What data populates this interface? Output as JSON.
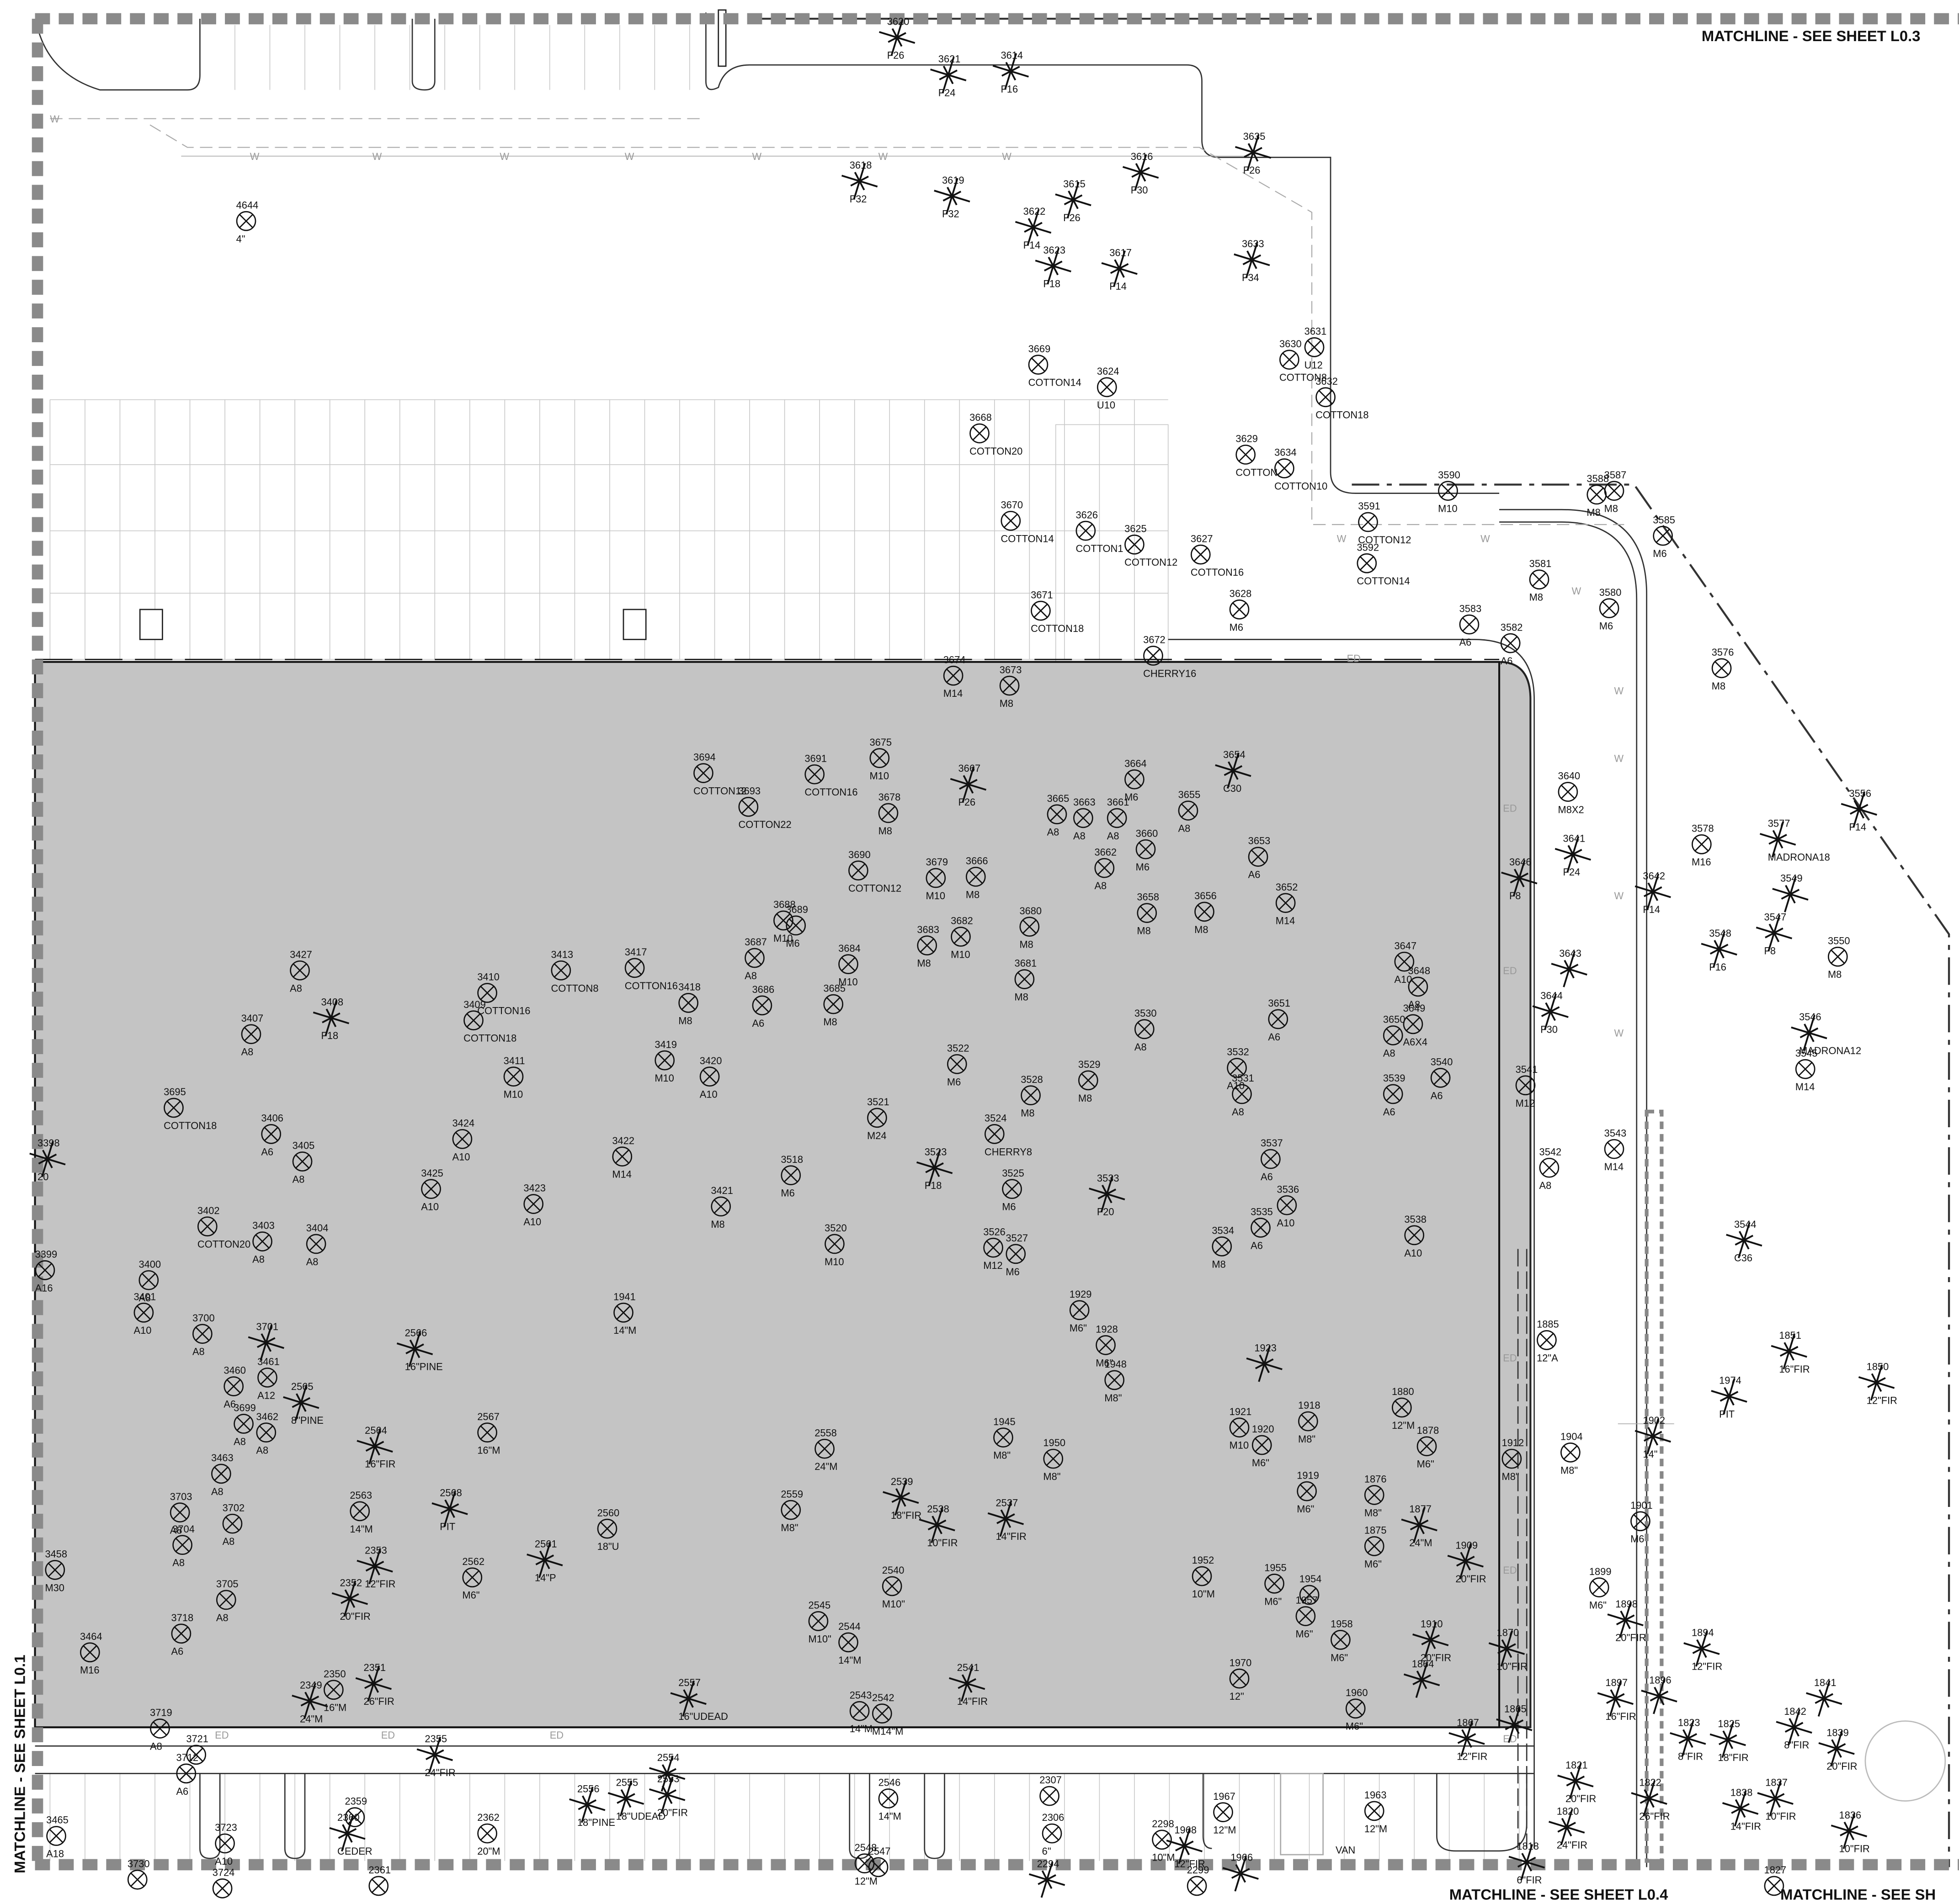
{
  "matchlines": {
    "top": "MATCHLINE - SEE SHEET L0.3",
    "left": "MATCHLINE - SEE SHEET L0.1",
    "bottom": "MATCHLINE - SEE SHEET L0.4",
    "bottom_right": "MATCHLINE - SEE SH"
  },
  "utility_labels": {
    "water": "W",
    "drain": "ED",
    "van": "VAN"
  },
  "trees": [
    {
      "id": "3620",
      "size": "F26"
    },
    {
      "id": "3621",
      "size": "F24"
    },
    {
      "id": "3614",
      "size": "F16"
    },
    {
      "id": "3618",
      "size": "F32"
    },
    {
      "id": "3619",
      "size": "F32"
    },
    {
      "id": "3615",
      "size": "F26"
    },
    {
      "id": "3616",
      "size": "F30"
    },
    {
      "id": "3635",
      "size": "F26"
    },
    {
      "id": "3622",
      "size": "F14"
    },
    {
      "id": "3623",
      "size": "F18"
    },
    {
      "id": "3617",
      "size": "F14"
    },
    {
      "id": "3633",
      "size": "F34"
    },
    {
      "id": "4644",
      "size": "4\""
    },
    {
      "id": "3669",
      "size": "COTTON14"
    },
    {
      "id": "3624",
      "size": "U10"
    },
    {
      "id": "3630",
      "size": "COTTON8"
    },
    {
      "id": "3631",
      "size": "U12"
    },
    {
      "id": "3632",
      "size": "COTTON18"
    },
    {
      "id": "3668",
      "size": "COTTON20"
    },
    {
      "id": "3629",
      "size": "COTTON"
    },
    {
      "id": "3634",
      "size": "COTTON10"
    },
    {
      "id": "3590",
      "size": "M10"
    },
    {
      "id": "3588",
      "size": "M8"
    },
    {
      "id": "3587",
      "size": "M8"
    },
    {
      "id": "3670",
      "size": "COTTON14"
    },
    {
      "id": "3626",
      "size": "COTTON1"
    },
    {
      "id": "3625",
      "size": "COTTON12"
    },
    {
      "id": "3627",
      "size": "COTTON16"
    },
    {
      "id": "3591",
      "size": "COTTON12"
    },
    {
      "id": "3592",
      "size": "COTTON14"
    },
    {
      "id": "3585",
      "size": "M6"
    },
    {
      "id": "3581",
      "size": "M8"
    },
    {
      "id": "3580",
      "size": "M6"
    },
    {
      "id": "3628",
      "size": "M6"
    },
    {
      "id": "3671",
      "size": "COTTON18"
    },
    {
      "id": "3583",
      "size": "A6"
    },
    {
      "id": "3582",
      "size": "A6"
    },
    {
      "id": "3672",
      "size": "CHERRY16"
    },
    {
      "id": "3674",
      "size": "M14"
    },
    {
      "id": "3673",
      "size": "M8"
    },
    {
      "id": "3576",
      "size": "M8"
    },
    {
      "id": "3694",
      "size": "COTTON12"
    },
    {
      "id": "3691",
      "size": "COTTON16"
    },
    {
      "id": "3675",
      "size": "M10"
    },
    {
      "id": "3693",
      "size": "COTTON22"
    },
    {
      "id": "3678",
      "size": "M8"
    },
    {
      "id": "3667",
      "size": "F26"
    },
    {
      "id": "3654",
      "size": "C30"
    },
    {
      "id": "3664",
      "size": "M6"
    },
    {
      "id": "3665",
      "size": "A8"
    },
    {
      "id": "3663",
      "size": "A8"
    },
    {
      "id": "3661",
      "size": "A8"
    },
    {
      "id": "3655",
      "size": "A8"
    },
    {
      "id": "3660",
      "size": "M6"
    },
    {
      "id": "3640",
      "size": "M8X2"
    },
    {
      "id": "3556",
      "size": "F14"
    },
    {
      "id": "3690",
      "size": "COTTON12"
    },
    {
      "id": "3679",
      "size": "M10"
    },
    {
      "id": "3666",
      "size": "M8"
    },
    {
      "id": "3662",
      "size": "A8"
    },
    {
      "id": "3653",
      "size": "A6"
    },
    {
      "id": "3578",
      "size": "M16"
    },
    {
      "id": "3577",
      "size": "MADRONA18"
    },
    {
      "id": "3641",
      "size": "F24"
    },
    {
      "id": "3646",
      "size": "F8"
    },
    {
      "id": "3642",
      "size": "F14"
    },
    {
      "id": "3549"
    },
    {
      "id": "3688",
      "size": "M10"
    },
    {
      "id": "3689",
      "size": "M6"
    },
    {
      "id": "3658",
      "size": "M8"
    },
    {
      "id": "3656",
      "size": "M8"
    },
    {
      "id": "3652",
      "size": "M14"
    },
    {
      "id": "3680",
      "size": "M8"
    },
    {
      "id": "3683",
      "size": "M8"
    },
    {
      "id": "3682",
      "size": "M10"
    },
    {
      "id": "3687",
      "size": "A8"
    },
    {
      "id": "3684",
      "size": "M10"
    },
    {
      "id": "3681",
      "size": "M8"
    },
    {
      "id": "3647",
      "size": "A10"
    },
    {
      "id": "3648",
      "size": "A8"
    },
    {
      "id": "3643"
    },
    {
      "id": "3548",
      "size": "F16"
    },
    {
      "id": "3547",
      "size": "F8"
    },
    {
      "id": "3550",
      "size": "M8"
    },
    {
      "id": "3427",
      "size": "A8"
    },
    {
      "id": "3410",
      "size": "COTTON16"
    },
    {
      "id": "3413",
      "size": "COTTON8"
    },
    {
      "id": "3417",
      "size": "COTTON16"
    },
    {
      "id": "3418",
      "size": "M8"
    },
    {
      "id": "3686",
      "size": "A6"
    },
    {
      "id": "3685",
      "size": "M8"
    },
    {
      "id": "3408",
      "size": "F18"
    },
    {
      "id": "3407",
      "size": "A8"
    },
    {
      "id": "3409",
      "size": "COTTON18"
    },
    {
      "id": "3644",
      "size": "F30"
    },
    {
      "id": "3530",
      "size": "A8"
    },
    {
      "id": "3651",
      "size": "A6"
    },
    {
      "id": "3649",
      "size": "A6X4"
    },
    {
      "id": "3650",
      "size": "A8"
    },
    {
      "id": "3546",
      "size": "MADRONA12"
    },
    {
      "id": "3545",
      "size": "M14"
    },
    {
      "id": "3419",
      "size": "M10"
    },
    {
      "id": "3420",
      "size": "A10"
    },
    {
      "id": "3411",
      "size": "M10"
    },
    {
      "id": "3522",
      "size": "M6"
    },
    {
      "id": "3529",
      "size": "M8"
    },
    {
      "id": "3528",
      "size": "M8"
    },
    {
      "id": "3532",
      "size": "A10"
    },
    {
      "id": "3531",
      "size": "A8"
    },
    {
      "id": "3539",
      "size": "A6"
    },
    {
      "id": "3540",
      "size": "A6"
    },
    {
      "id": "3541",
      "size": "M12"
    },
    {
      "id": "3695",
      "size": "COTTON18"
    },
    {
      "id": "3521",
      "size": "M24"
    },
    {
      "id": "3524",
      "size": "CHERRY8"
    },
    {
      "id": "3406",
      "size": "A6"
    },
    {
      "id": "3424",
      "size": "A10"
    },
    {
      "id": "3405",
      "size": "A8"
    },
    {
      "id": "3422",
      "size": "M14"
    },
    {
      "id": "3523",
      "size": "F18"
    },
    {
      "id": "3518",
      "size": "M6"
    },
    {
      "id": "3537",
      "size": "A6"
    },
    {
      "id": "3542",
      "size": "A8"
    },
    {
      "id": "3543",
      "size": "M14"
    },
    {
      "id": "3533",
      "size": "F20"
    },
    {
      "id": "3525",
      "size": "M6"
    },
    {
      "id": "3425",
      "size": "A10"
    },
    {
      "id": "3423",
      "size": "A10"
    },
    {
      "id": "3421",
      "size": "M8"
    },
    {
      "id": "3536",
      "size": "A10"
    },
    {
      "id": "3535",
      "size": "A6"
    },
    {
      "id": "3538",
      "size": "A10"
    },
    {
      "id": "3544",
      "size": "C36"
    },
    {
      "id": "3402",
      "size": "COTTON20"
    },
    {
      "id": "3403",
      "size": "A8"
    },
    {
      "id": "3404",
      "size": "A8"
    },
    {
      "id": "3520",
      "size": "M10"
    },
    {
      "id": "3526",
      "size": "M12"
    },
    {
      "id": "3527",
      "size": "M6"
    },
    {
      "id": "3534",
      "size": "M8"
    },
    {
      "id": "3399",
      "size": "A16"
    },
    {
      "id": "3400",
      "size": "A8"
    },
    {
      "id": "3401",
      "size": "A10"
    },
    {
      "id": "1941",
      "size": "14\"M"
    },
    {
      "id": "1929",
      "size": "M6\""
    },
    {
      "id": "1885",
      "size": "12\"A"
    },
    {
      "id": "3700",
      "size": "A8"
    },
    {
      "id": "3701"
    },
    {
      "id": "2566",
      "size": "16\"PINE"
    },
    {
      "id": "1928",
      "size": "M6\""
    },
    {
      "id": "1923"
    },
    {
      "id": "1851",
      "size": "16\"FIR"
    },
    {
      "id": "1850",
      "size": "12\"FIR"
    },
    {
      "id": "1974",
      "size": "PIT"
    },
    {
      "id": "3460",
      "size": "A6"
    },
    {
      "id": "3461",
      "size": "A12"
    },
    {
      "id": "2565",
      "size": "8\"PINE"
    },
    {
      "id": "1948",
      "size": "M8\""
    },
    {
      "id": "1880",
      "size": "12\"M"
    },
    {
      "id": "3699",
      "size": "A8"
    },
    {
      "id": "3462",
      "size": "A8"
    },
    {
      "id": "1918",
      "size": "M8\""
    },
    {
      "id": "1878",
      "size": "M6\""
    },
    {
      "id": "1945",
      "size": "M8\""
    },
    {
      "id": "1950",
      "size": "M8\""
    },
    {
      "id": "1920",
      "size": "M6\""
    },
    {
      "id": "1921",
      "size": "M10"
    },
    {
      "id": "2564",
      "size": "16\"FIR"
    },
    {
      "id": "2567",
      "size": "16\"M"
    },
    {
      "id": "1902",
      "size": "14\""
    },
    {
      "id": "1912",
      "size": "M8\""
    },
    {
      "id": "1904",
      "size": "M8\""
    },
    {
      "id": "2558",
      "size": "24\"M"
    },
    {
      "id": "3463",
      "size": "A8"
    },
    {
      "id": "2539",
      "size": "18\"FIR"
    },
    {
      "id": "2538",
      "size": "10\"FIR"
    },
    {
      "id": "2537",
      "size": "14\"FIR"
    },
    {
      "id": "1919",
      "size": "M6\""
    },
    {
      "id": "1876",
      "size": "M8\""
    },
    {
      "id": "1877",
      "size": "24\"M"
    },
    {
      "id": "1901",
      "size": "M6"
    },
    {
      "id": "3703",
      "size": "A8"
    },
    {
      "id": "3704",
      "size": "A8"
    },
    {
      "id": "3702",
      "size": "A8"
    },
    {
      "id": "2563",
      "size": "14\"M"
    },
    {
      "id": "2568",
      "size": "PIT"
    },
    {
      "id": "2559",
      "size": "M8\""
    },
    {
      "id": "2560",
      "size": "18\"U"
    },
    {
      "id": "2353",
      "size": "12\"FIR"
    },
    {
      "id": "2561",
      "size": "14\"P"
    },
    {
      "id": "1875",
      "size": "M6\""
    },
    {
      "id": "1909",
      "size": "20\"FIR"
    },
    {
      "id": "3458",
      "size": "M30"
    },
    {
      "id": "2562",
      "size": "M6\""
    },
    {
      "id": "2540",
      "size": "M10\""
    },
    {
      "id": "1952",
      "size": "10\"M"
    },
    {
      "id": "1955",
      "size": "M6\""
    },
    {
      "id": "1954"
    },
    {
      "id": "1899",
      "size": "M6\""
    },
    {
      "id": "2352",
      "size": "20\"FIR"
    },
    {
      "id": "3705",
      "size": "A8"
    },
    {
      "id": "1898",
      "size": "20\"FIR"
    },
    {
      "id": "2545",
      "size": "M10\""
    },
    {
      "id": "2544",
      "size": "14\"M"
    },
    {
      "id": "3718",
      "size": "A6"
    },
    {
      "id": "3464",
      "size": "M16"
    },
    {
      "id": "1957",
      "size": "M6\""
    },
    {
      "id": "1910",
      "size": "20\"FIR"
    },
    {
      "id": "1958",
      "size": "M6\""
    },
    {
      "id": "1870",
      "size": "10\"FIR"
    },
    {
      "id": "1894",
      "size": "12\"FIR"
    },
    {
      "id": "1970",
      "size": "12\""
    },
    {
      "id": "2541",
      "size": "14\"FIR"
    },
    {
      "id": "2351",
      "size": "26\"FIR"
    },
    {
      "id": "2350",
      "size": "16\"M"
    },
    {
      "id": "2349",
      "size": "24\"M"
    },
    {
      "id": "2557",
      "size": "16\"UDEAD"
    },
    {
      "id": "1864"
    },
    {
      "id": "1960",
      "size": "M6\""
    },
    {
      "id": "1841"
    },
    {
      "id": "1842",
      "size": "8\"FIR"
    },
    {
      "id": "1839",
      "size": "20\"FIR"
    },
    {
      "id": "1825",
      "size": "18\"FIR"
    },
    {
      "id": "1823",
      "size": "8\"FIR"
    },
    {
      "id": "1897",
      "size": "16\"FIR"
    },
    {
      "id": "1896"
    },
    {
      "id": "1865"
    },
    {
      "id": "1867",
      "size": "12\"FIR"
    },
    {
      "id": "2543",
      "size": "14\"M"
    },
    {
      "id": "2542",
      "size": "M14\"M"
    },
    {
      "id": "2355",
      "size": "24\"FIR"
    },
    {
      "id": "2554"
    },
    {
      "id": "3719",
      "size": "A8"
    },
    {
      "id": "3721"
    },
    {
      "id": "3712",
      "size": "A6"
    },
    {
      "id": "1821",
      "size": "20\"FIR"
    },
    {
      "id": "1822",
      "size": "26\"FIR"
    },
    {
      "id": "1837",
      "size": "10\"FIR"
    },
    {
      "id": "1838",
      "size": "14\"FIR"
    },
    {
      "id": "1836",
      "size": "10\"FIR"
    },
    {
      "id": "1820",
      "size": "24\"FIR"
    },
    {
      "id": "2546",
      "size": "14\"M"
    },
    {
      "id": "2307"
    },
    {
      "id": "2306",
      "size": "6\""
    },
    {
      "id": "1967",
      "size": "12\"M"
    },
    {
      "id": "1963",
      "size": "12\"M"
    },
    {
      "id": "2556",
      "size": "18\"PINE"
    },
    {
      "id": "2555",
      "size": "18\"UDEAD"
    },
    {
      "id": "2553",
      "size": "20\"FIR"
    },
    {
      "id": "2359"
    },
    {
      "id": "2360",
      "size": "CEDER"
    },
    {
      "id": "2362",
      "size": "20\"M"
    },
    {
      "id": "3723",
      "size": "A10"
    },
    {
      "id": "3465",
      "size": "A18"
    },
    {
      "id": "1968",
      "size": "12\"FIR"
    },
    {
      "id": "2298",
      "size": "10\"M"
    },
    {
      "id": "1966"
    },
    {
      "id": "1818",
      "size": "6\"FIR"
    },
    {
      "id": "2548",
      "size": "12\"M"
    },
    {
      "id": "2547"
    },
    {
      "id": "2294"
    },
    {
      "id": "3730"
    },
    {
      "id": "3724"
    },
    {
      "id": "2361"
    },
    {
      "id": "2299"
    },
    {
      "id": "1827"
    },
    {
      "id": "3398",
      "size": "20"
    }
  ]
}
